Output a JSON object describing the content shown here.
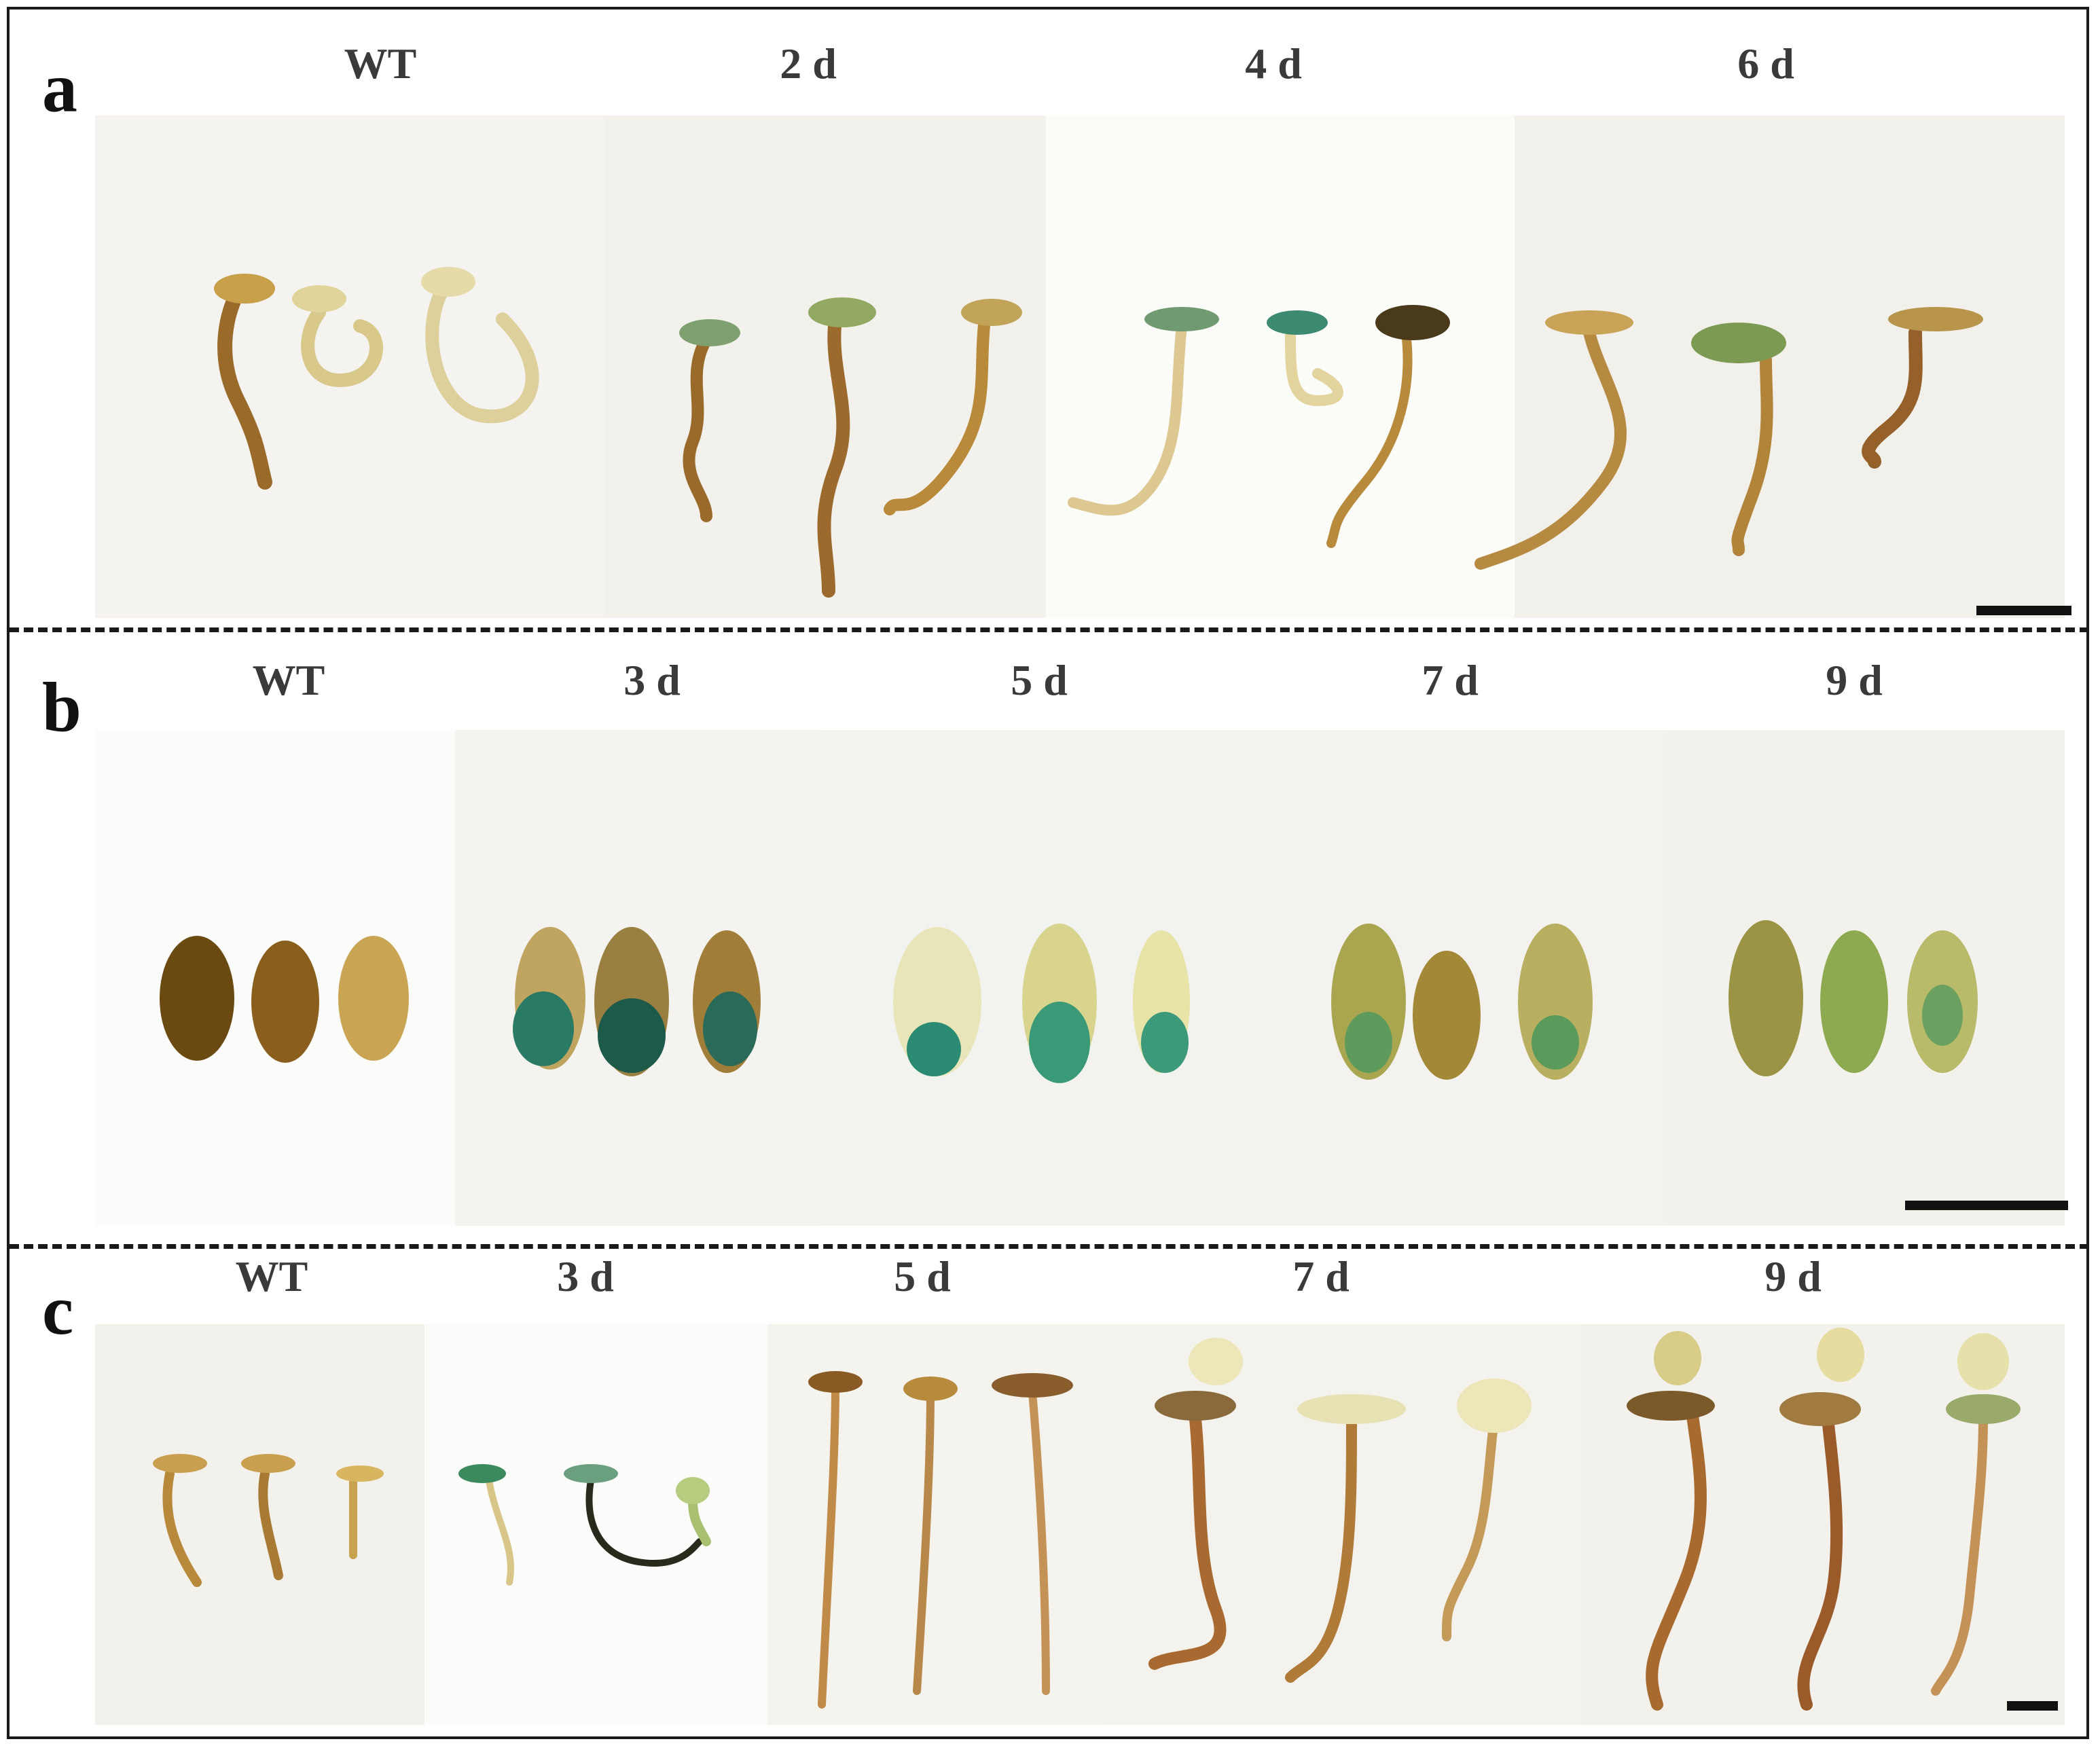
{
  "panels": [
    {
      "letter": "a",
      "labels": [
        "WT",
        "2 d",
        "4 d",
        "6 d"
      ]
    },
    {
      "letter": "b",
      "labels": [
        "WT",
        "3 d",
        "5 d",
        "7 d",
        "9 d"
      ]
    },
    {
      "letter": "c",
      "labels": [
        "WT",
        "3 d",
        "5 d",
        "7 d",
        "9 d"
      ]
    }
  ],
  "colors": {
    "background": "#ffffff",
    "frame": "#1a1a1a",
    "tissue_brown": "#8a5a22",
    "tissue_pale": "#e8dca0",
    "gus_blue": "#1f7a66",
    "seed_dark": "#6b4a12"
  }
}
